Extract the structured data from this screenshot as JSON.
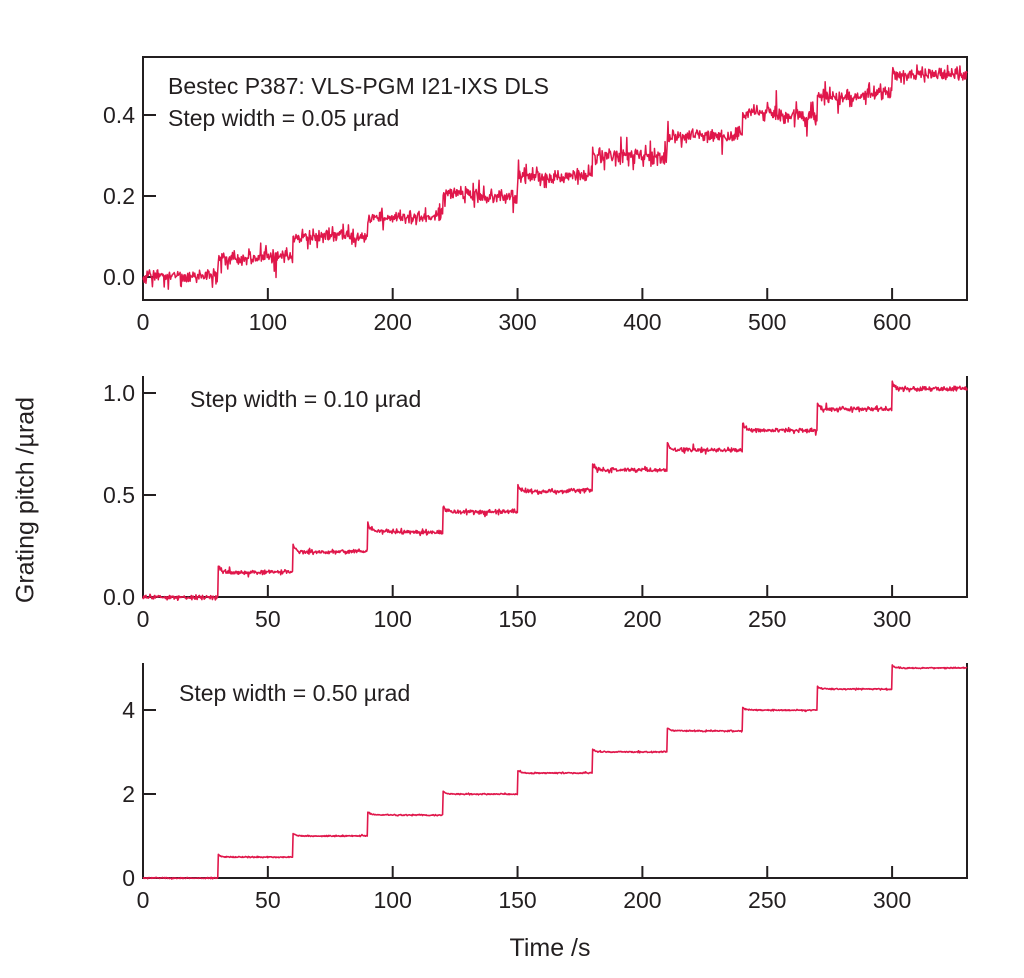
{
  "figure": {
    "xlabel": "Time /s",
    "ylabel": "Grating pitch /µrad",
    "line_color": "#e0174b",
    "axis_color": "#231f20",
    "background": "#ffffff"
  },
  "chart_data": [
    {
      "type": "line",
      "panel": "top",
      "annotation": [
        "Bestec P387: VLS-PGM I21-IXS DLS",
        "Step width = 0.05 µrad"
      ],
      "step_width_urad": 0.05,
      "step_duration_s": 60,
      "num_steps": 10,
      "levels_urad": [
        0,
        0.05,
        0.1,
        0.15,
        0.2,
        0.25,
        0.3,
        0.35,
        0.4,
        0.45,
        0.5
      ],
      "x_range_s": [
        0,
        660
      ],
      "x_ticks": [
        0,
        100,
        200,
        300,
        400,
        500,
        600
      ],
      "x_tick_labels": [
        "0",
        "100",
        "200",
        "300",
        "400",
        "500",
        "600"
      ],
      "y_ticks": [
        0.0,
        0.2,
        0.4
      ],
      "y_tick_labels": [
        "0.0",
        "0.2",
        "0.4"
      ],
      "y_display_range": [
        -0.057,
        0.543
      ],
      "noise_std_urad": 0.009,
      "noise_wander_urad": 0.006,
      "spike_prob": 0.06,
      "spike_amp_urad": 0.045,
      "overshoot_urad": 0.0,
      "plateau_offset_urad": 0.0,
      "seed": 7
    },
    {
      "type": "line",
      "panel": "middle",
      "annotation": [
        "Step width = 0.10 µrad"
      ],
      "step_width_urad": 0.1,
      "step_duration_s": 30,
      "num_steps": 10,
      "levels_urad": [
        0,
        0.1,
        0.2,
        0.3,
        0.4,
        0.5,
        0.6,
        0.7,
        0.8,
        0.9,
        1.0
      ],
      "x_range_s": [
        0,
        330
      ],
      "x_ticks": [
        0,
        50,
        100,
        150,
        200,
        250,
        300
      ],
      "x_tick_labels": [
        "0",
        "50",
        "100",
        "150",
        "200",
        "250",
        "300"
      ],
      "y_ticks": [
        0.0,
        0.5,
        1.0
      ],
      "y_tick_labels": [
        "0.0",
        "0.5",
        "1.0"
      ],
      "y_display_range": [
        -0.04,
        1.07
      ],
      "noise_std_urad": 0.0055,
      "noise_wander_urad": 0.004,
      "spike_prob": 0.02,
      "spike_amp_urad": 0.03,
      "overshoot_urad": 0.035,
      "plateau_offset_urad": 0.02,
      "seed": 13
    },
    {
      "type": "line",
      "panel": "bottom",
      "annotation": [
        "Step width = 0.50 µrad"
      ],
      "step_width_urad": 0.5,
      "step_duration_s": 30,
      "num_steps": 10,
      "levels_urad": [
        0,
        0.5,
        1.0,
        1.5,
        2.0,
        2.5,
        3.0,
        3.5,
        4.0,
        4.5,
        5.0
      ],
      "x_range_s": [
        0,
        330
      ],
      "x_ticks": [
        0,
        50,
        100,
        150,
        200,
        250,
        300
      ],
      "x_tick_labels": [
        "0",
        "50",
        "100",
        "150",
        "200",
        "250",
        "300"
      ],
      "y_ticks": [
        0,
        2,
        4
      ],
      "y_tick_labels": [
        "0",
        "2",
        "4"
      ],
      "y_display_range": [
        0,
        5.07
      ],
      "noise_std_urad": 0.008,
      "noise_wander_urad": 0.005,
      "spike_prob": 0.0,
      "spike_amp_urad": 0.0,
      "overshoot_urad": 0.07,
      "plateau_offset_urad": 0.0,
      "seed": 21
    }
  ]
}
